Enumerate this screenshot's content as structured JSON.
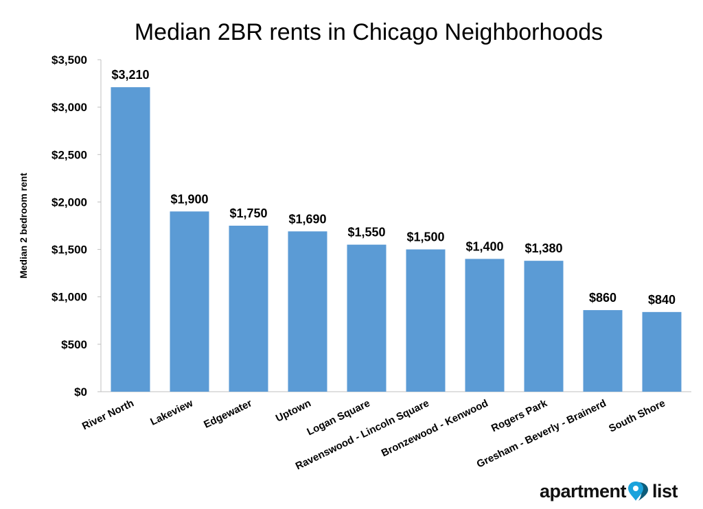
{
  "chart_data": {
    "type": "bar",
    "title": "Median 2BR rents in Chicago Neighborhoods",
    "xlabel": "",
    "ylabel": "Median 2 bedroom rent",
    "categories": [
      "River North",
      "Lakeview",
      "Edgewater",
      "Uptown",
      "Logan Square",
      "Ravenswood - Lincoln Square",
      "Bronzewood - Kenwood",
      "Rogers Park",
      "Gresham - Beverly - Brainerd",
      "South Shore"
    ],
    "values": [
      3210,
      1900,
      1750,
      1690,
      1550,
      1500,
      1400,
      1380,
      860,
      840
    ],
    "data_labels": [
      "$3,210",
      "$1,900",
      "$1,750",
      "$1,690",
      "$1,550",
      "$1,500",
      "$1,400",
      "$1,380",
      "$860",
      "$840"
    ],
    "ylim": [
      0,
      3500
    ],
    "yticks": [
      0,
      500,
      1000,
      1500,
      2000,
      2500,
      3000,
      3500
    ],
    "ytick_labels": [
      "$0",
      "$500",
      "$1,000",
      "$1,500",
      "$2,000",
      "$2,500",
      "$3,000",
      "$3,500"
    ],
    "grid": false,
    "legend": "none",
    "bar_color": "#5b9bd5"
  },
  "logo": {
    "left_text": "apartment",
    "right_text": "list",
    "pin_color": "#1aa3dc",
    "pin_shadow_color": "#0d5c7a"
  }
}
